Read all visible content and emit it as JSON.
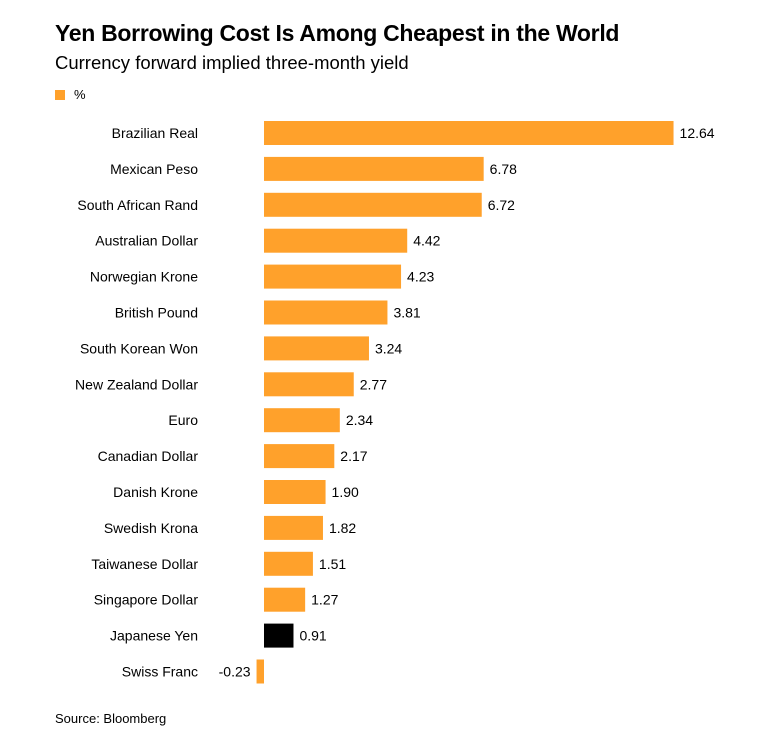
{
  "title": "Yen Borrowing Cost Is Among Cheapest in the World",
  "subtitle": "Currency forward implied three-month yield",
  "legend": {
    "label": "%",
    "color": "#ffa12b"
  },
  "source": "Source: Bloomberg",
  "colors": {
    "bar": "#ffa12b",
    "highlight": "#000000"
  },
  "chart_data": {
    "type": "bar",
    "orientation": "horizontal",
    "title": "Yen Borrowing Cost Is Among Cheapest in the World",
    "subtitle": "Currency forward implied three-month yield",
    "legend": [
      "%"
    ],
    "grid": false,
    "categories": [
      "Brazilian Real",
      "Mexican Peso",
      "South African Rand",
      "Australian Dollar",
      "Norwegian Krone",
      "British Pound",
      "South Korean Won",
      "New Zealand Dollar",
      "Euro",
      "Canadian Dollar",
      "Danish Krone",
      "Swedish Krona",
      "Taiwanese Dollar",
      "Singapore Dollar",
      "Japanese Yen",
      "Swiss Franc"
    ],
    "values": [
      12.64,
      6.78,
      6.72,
      4.42,
      4.23,
      3.81,
      3.24,
      2.77,
      2.34,
      2.17,
      1.9,
      1.82,
      1.51,
      1.27,
      0.91,
      -0.23
    ],
    "value_labels": [
      "12.64",
      "6.78",
      "6.72",
      "4.42",
      "4.23",
      "3.81",
      "3.24",
      "2.77",
      "2.34",
      "2.17",
      "1.90",
      "1.82",
      "1.51",
      "1.27",
      "0.91",
      "-0.23"
    ],
    "highlight": "Japanese Yen"
  }
}
